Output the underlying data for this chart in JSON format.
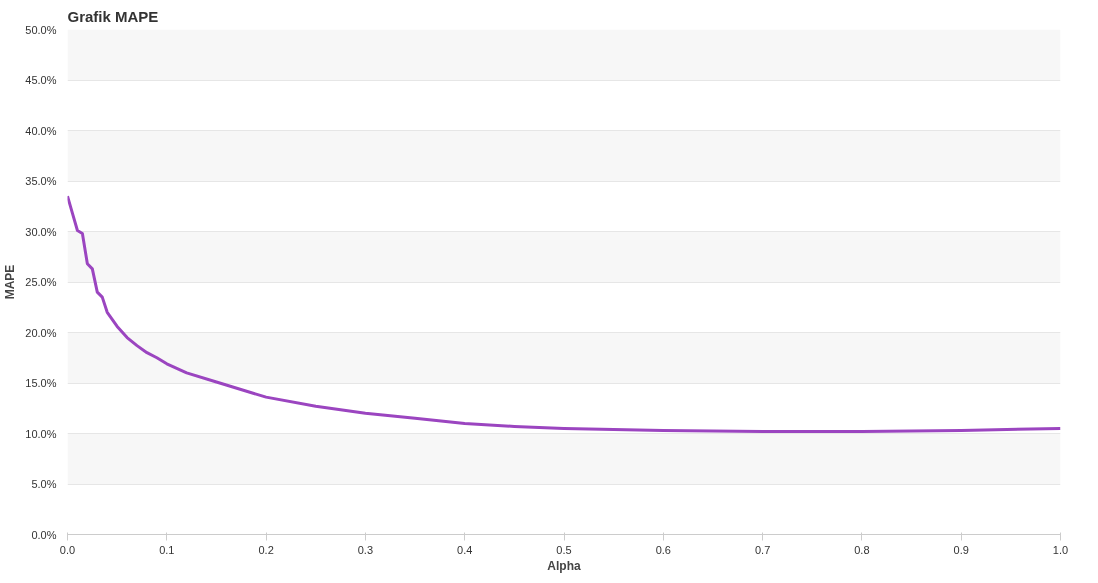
{
  "chart_data": {
    "type": "line",
    "title": "Grafik MAPE",
    "xlabel": "Alpha",
    "ylabel": "MAPE",
    "x": [
      0,
      0.005,
      0.01,
      0.015,
      0.02,
      0.025,
      0.03,
      0.035,
      0.04,
      0.05,
      0.06,
      0.07,
      0.08,
      0.09,
      0.1,
      0.12,
      0.15,
      0.2,
      0.25,
      0.3,
      0.35,
      0.4,
      0.45,
      0.5,
      0.6,
      0.7,
      0.75,
      0.8,
      0.9,
      1.0
    ],
    "series": [
      {
        "color": "#9b45c0",
        "values": [
          33.5,
          31.8,
          30.1,
          29.8,
          26.8,
          26.3,
          24.0,
          23.5,
          22.0,
          20.6,
          19.5,
          18.7,
          18.0,
          17.5,
          16.9,
          16.0,
          15.1,
          13.6,
          12.7,
          12.0,
          11.5,
          11.0,
          10.7,
          10.5,
          10.3,
          10.2,
          10.2,
          10.2,
          10.3,
          10.5
        ]
      }
    ],
    "xlim": [
      0,
      1
    ],
    "xticks": [
      {
        "value": 0,
        "label": "0.0"
      },
      0.1,
      0.2,
      0.3,
      0.4,
      0.5,
      0.6,
      0.7,
      0.8,
      0.9,
      {
        "value": 1,
        "label": "1.0"
      }
    ],
    "ylim": [
      0,
      50
    ],
    "yticks": [
      {
        "value": 0,
        "label": "0.0%"
      },
      {
        "value": 5,
        "label": "5.0%"
      },
      {
        "value": 10,
        "label": "10.0%"
      },
      {
        "value": 15,
        "label": "15.0%"
      },
      {
        "value": 20,
        "label": "20.0%"
      },
      {
        "value": 25,
        "label": "25.0%"
      },
      {
        "value": 30,
        "label": "30.0%"
      },
      {
        "value": 35,
        "label": "35.0%"
      },
      {
        "value": 40,
        "label": "40.0%"
      },
      {
        "value": 45,
        "label": "45.0%"
      },
      {
        "value": 50,
        "label": "50.0%"
      }
    ],
    "grid": "y",
    "marker": "none",
    "line_style": "solid"
  }
}
